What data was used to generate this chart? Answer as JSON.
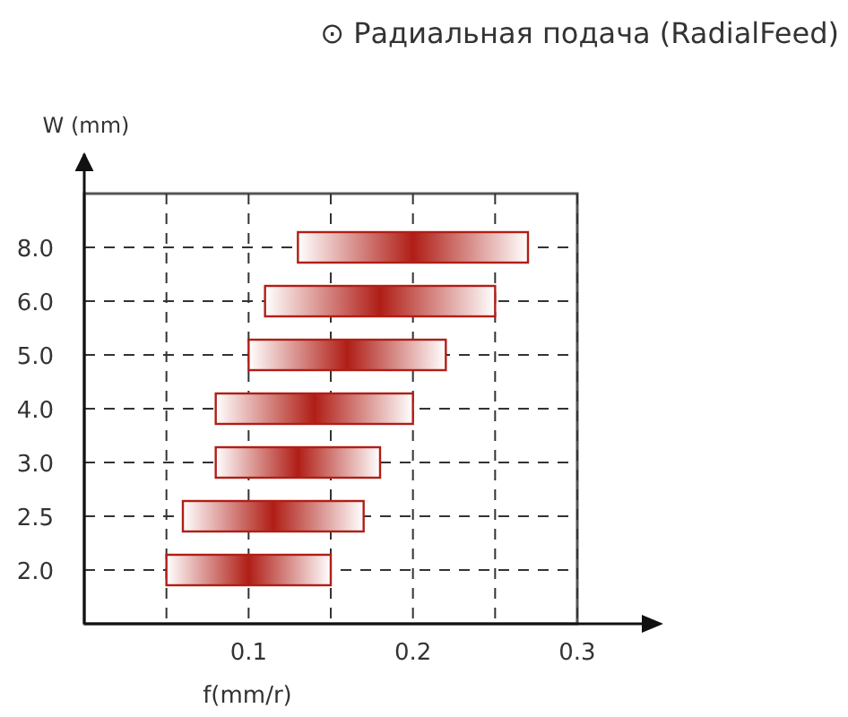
{
  "chart_data": {
    "type": "bar",
    "orientation": "horizontal",
    "title": "⊙ Радиальная подача (RadialFeed)",
    "xlabel": "f(mm/r)",
    "ylabel": "W (mm)",
    "categories": [
      "8.0",
      "6.0",
      "5.0",
      "4.0",
      "3.0",
      "2.5",
      "2.0"
    ],
    "base": [
      0.13,
      0.11,
      0.1,
      0.08,
      0.08,
      0.06,
      0.05
    ],
    "values": [
      0.14,
      0.14,
      0.12,
      0.12,
      0.1,
      0.11,
      0.1
    ],
    "color": "#b01e16",
    "xlim": [
      0,
      0.3
    ],
    "xticks": [
      {
        "value": 0.05,
        "label": null
      },
      0.1,
      {
        "value": 0.15,
        "label": null
      },
      0.2,
      {
        "value": 0.25,
        "label": null
      },
      0.3
    ],
    "grid": true,
    "line_style": "dashed"
  }
}
